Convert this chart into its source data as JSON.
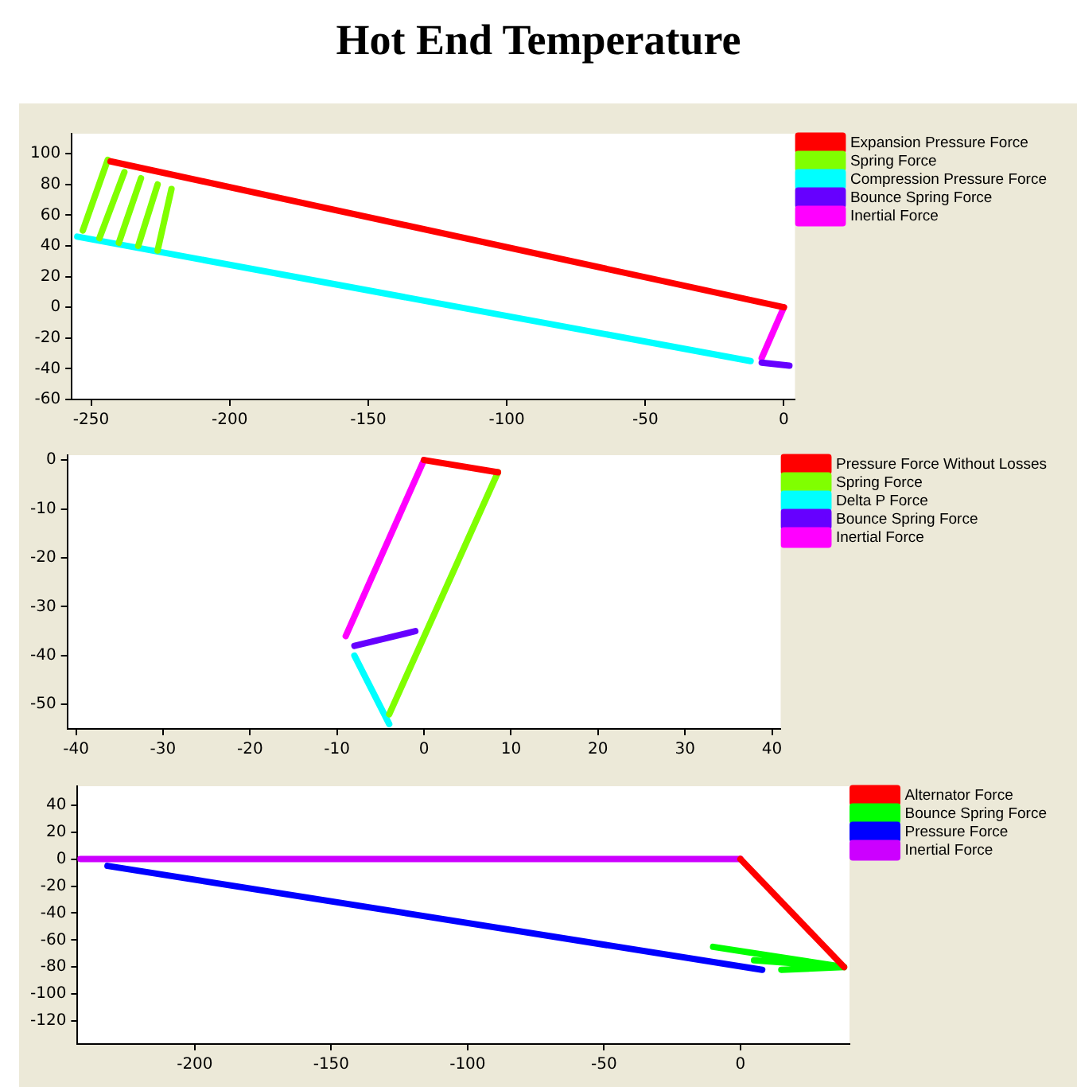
{
  "chart_data": [
    {
      "type": "line",
      "title": "Hot End Temperature",
      "xlim": [
        -257,
        4
      ],
      "ylim": [
        -60,
        113
      ],
      "xticks": [
        -250,
        -200,
        -150,
        -100,
        -50,
        0
      ],
      "yticks": [
        -60,
        -40,
        -20,
        0,
        20,
        40,
        60,
        80,
        100
      ],
      "legend": "right",
      "marker": "none",
      "grid": false,
      "series": [
        {
          "name": "Expansion Pressure Force",
          "color": "#ff0000",
          "x": [
            0,
            -243
          ],
          "values": [
            0,
            95
          ]
        },
        {
          "name": "Spring Force",
          "color": "#80ff00",
          "x": [
            -244,
            -253,
            null,
            -238,
            -247,
            null,
            -232,
            -240,
            null,
            -226,
            -233,
            null,
            -221,
            -226
          ],
          "values": [
            96,
            50,
            null,
            88,
            45,
            null,
            84,
            42,
            null,
            80,
            40,
            null,
            77,
            37
          ]
        },
        {
          "name": "Compression Pressure Force",
          "color": "#00ffff",
          "x": [
            -255,
            -12
          ],
          "values": [
            46,
            -35
          ]
        },
        {
          "name": "Bounce Spring Force",
          "color": "#6600ff",
          "x": [
            2,
            -8
          ],
          "values": [
            -38,
            -36
          ]
        },
        {
          "name": "Inertial Force",
          "color": "#ff00ff",
          "x": [
            0,
            -8
          ],
          "values": [
            0,
            -33
          ]
        }
      ]
    },
    {
      "type": "line",
      "xlim": [
        -41,
        41
      ],
      "ylim": [
        -55,
        1
      ],
      "xticks": [
        -40,
        -30,
        -20,
        -10,
        0,
        10,
        20,
        30,
        40
      ],
      "yticks": [
        -50,
        -40,
        -30,
        -20,
        -10,
        0
      ],
      "legend": "right",
      "marker": "none",
      "grid": false,
      "series": [
        {
          "name": "Pressure Force Without Losses",
          "color": "#ff0000",
          "x": [
            0,
            8.5
          ],
          "values": [
            0,
            -2.5
          ]
        },
        {
          "name": "Spring Force",
          "color": "#80ff00",
          "x": [
            8.5,
            -4
          ],
          "values": [
            -2.5,
            -52
          ]
        },
        {
          "name": "Delta P Force",
          "color": "#00ffff",
          "x": [
            -4,
            -8
          ],
          "values": [
            -54,
            -40
          ]
        },
        {
          "name": "Bounce Spring Force",
          "color": "#6600ff",
          "x": [
            -8,
            -1
          ],
          "values": [
            -38,
            -35
          ]
        },
        {
          "name": "Inertial Force",
          "color": "#ff00ff",
          "x": [
            0,
            -9
          ],
          "values": [
            0,
            -36
          ]
        }
      ]
    },
    {
      "type": "line",
      "xlim": [
        -243,
        40
      ],
      "ylim": [
        -137,
        54
      ],
      "xticks": [
        -200,
        -150,
        -100,
        -50,
        0
      ],
      "yticks": [
        -120,
        -100,
        -80,
        -60,
        -40,
        -20,
        0,
        20,
        40
      ],
      "legend": "right",
      "marker": "none",
      "grid": false,
      "series": [
        {
          "name": "Alternator Force",
          "color": "#ff0000",
          "x": [
            0,
            38
          ],
          "values": [
            0,
            -80
          ]
        },
        {
          "name": "Bounce Spring Force",
          "color": "#00ff00",
          "x": [
            38,
            -10,
            null,
            38,
            5,
            null,
            38,
            15
          ],
          "values": [
            -80,
            -65,
            null,
            -80,
            -75,
            null,
            -80,
            -82
          ]
        },
        {
          "name": "Pressure Force",
          "color": "#0000ff",
          "x": [
            8,
            -232
          ],
          "values": [
            -82,
            -5
          ]
        },
        {
          "name": "Inertial Force",
          "color": "#cc00ff",
          "x": [
            0,
            -242
          ],
          "values": [
            0,
            0
          ]
        }
      ]
    }
  ]
}
